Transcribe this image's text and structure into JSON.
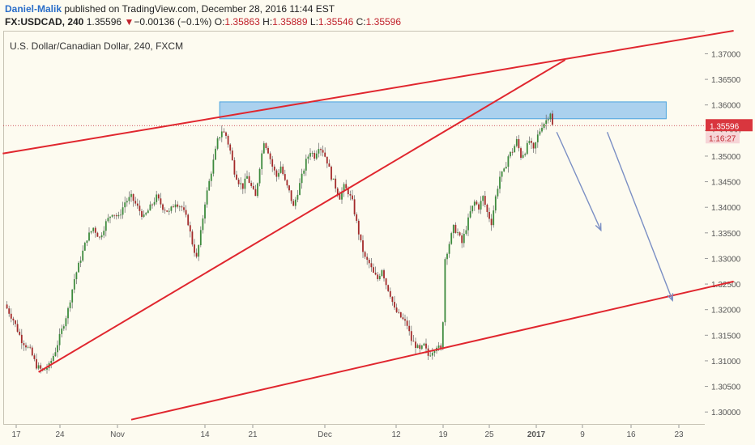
{
  "header": {
    "author": "Daniel-Malik",
    "published": "published on TradingView.com, December 28, 2016 11:44 EST",
    "symbol": "FX:USDCAD, 240",
    "last": "1.35596",
    "change_arrow": "▼",
    "change": "−0.00136 (−0.1%)",
    "open_label": "O:",
    "open": "1.35863",
    "high_label": "H:",
    "high": "1.35889",
    "low_label": "L:",
    "low": "1.35546",
    "close_label": "C:",
    "close": "1.35596"
  },
  "chart_data": {
    "type": "candlestick",
    "title": "U.S. Dollar/Canadian Dollar, 240, FXCM",
    "ylim": [
      1.2975,
      1.3745
    ],
    "y_ticks": [
      "1.30000",
      "1.30500",
      "1.31000",
      "1.31500",
      "1.32000",
      "1.32500",
      "1.33000",
      "1.33500",
      "1.34000",
      "1.34500",
      "1.35000",
      "1.35500",
      "1.36000",
      "1.36500",
      "1.37000"
    ],
    "x_ticks": [
      "17",
      "24",
      "Nov",
      "14",
      "21",
      "Dec",
      "12",
      "19",
      "25",
      "2017",
      "9",
      "16",
      "23"
    ],
    "last_price_label": "1.35596",
    "countdown_label": "1:16:27",
    "close_path": [
      [
        0,
        1.321
      ],
      [
        4,
        1.318
      ],
      [
        8,
        1.314
      ],
      [
        12,
        1.312
      ],
      [
        15,
        1.309
      ],
      [
        18,
        1.308
      ],
      [
        21,
        1.309
      ],
      [
        24,
        1.312
      ],
      [
        27,
        1.316
      ],
      [
        30,
        1.32
      ],
      [
        33,
        1.326
      ],
      [
        36,
        1.33
      ],
      [
        39,
        1.334
      ],
      [
        42,
        1.336
      ],
      [
        45,
        1.334
      ],
      [
        48,
        1.337
      ],
      [
        51,
        1.339
      ],
      [
        54,
        1.338
      ],
      [
        57,
        1.341
      ],
      [
        60,
        1.342
      ],
      [
        63,
        1.34
      ],
      [
        66,
        1.338
      ],
      [
        69,
        1.34
      ],
      [
        72,
        1.342
      ],
      [
        75,
        1.34
      ],
      [
        78,
        1.339
      ],
      [
        81,
        1.341
      ],
      [
        84,
        1.34
      ],
      [
        87,
        1.337
      ],
      [
        89,
        1.333
      ],
      [
        91,
        1.33
      ],
      [
        93,
        1.335
      ],
      [
        95,
        1.341
      ],
      [
        97,
        1.345
      ],
      [
        99,
        1.349
      ],
      [
        101,
        1.353
      ],
      [
        103,
        1.355
      ],
      [
        105,
        1.354
      ],
      [
        107,
        1.351
      ],
      [
        109,
        1.347
      ],
      [
        111,
        1.345
      ],
      [
        113,
        1.344
      ],
      [
        115,
        1.346
      ],
      [
        117,
        1.344
      ],
      [
        119,
        1.342
      ],
      [
        121,
        1.348
      ],
      [
        123,
        1.353
      ],
      [
        125,
        1.351
      ],
      [
        127,
        1.348
      ],
      [
        129,
        1.346
      ],
      [
        131,
        1.348
      ],
      [
        133,
        1.345
      ],
      [
        135,
        1.343
      ],
      [
        137,
        1.34
      ],
      [
        139,
        1.343
      ],
      [
        141,
        1.346
      ],
      [
        143,
        1.349
      ],
      [
        145,
        1.351
      ],
      [
        147,
        1.35
      ],
      [
        149,
        1.352
      ],
      [
        151,
        1.351
      ],
      [
        153,
        1.349
      ],
      [
        155,
        1.346
      ],
      [
        157,
        1.344
      ],
      [
        159,
        1.342
      ],
      [
        161,
        1.344
      ],
      [
        163,
        1.343
      ],
      [
        165,
        1.341
      ],
      [
        167,
        1.337
      ],
      [
        169,
        1.333
      ],
      [
        171,
        1.33
      ],
      [
        173,
        1.329
      ],
      [
        175,
        1.327
      ],
      [
        177,
        1.326
      ],
      [
        179,
        1.328
      ],
      [
        181,
        1.325
      ],
      [
        183,
        1.323
      ],
      [
        185,
        1.32
      ],
      [
        187,
        1.319
      ],
      [
        189,
        1.318
      ],
      [
        191,
        1.317
      ],
      [
        193,
        1.314
      ],
      [
        195,
        1.313
      ],
      [
        197,
        1.312
      ],
      [
        199,
        1.313
      ],
      [
        201,
        1.311
      ],
      [
        203,
        1.312
      ],
      [
        205,
        1.313
      ],
      [
        207,
        1.312
      ],
      [
        208,
        1.318
      ],
      [
        209,
        1.33
      ],
      [
        211,
        1.333
      ],
      [
        213,
        1.336
      ],
      [
        215,
        1.335
      ],
      [
        217,
        1.333
      ],
      [
        219,
        1.336
      ],
      [
        221,
        1.339
      ],
      [
        223,
        1.341
      ],
      [
        225,
        1.34
      ],
      [
        227,
        1.342
      ],
      [
        229,
        1.339
      ],
      [
        231,
        1.337
      ],
      [
        233,
        1.342
      ],
      [
        235,
        1.346
      ],
      [
        237,
        1.347
      ],
      [
        239,
        1.35
      ],
      [
        241,
        1.351
      ],
      [
        243,
        1.353
      ],
      [
        245,
        1.35
      ],
      [
        247,
        1.351
      ],
      [
        249,
        1.353
      ],
      [
        251,
        1.351
      ],
      [
        253,
        1.354
      ],
      [
        255,
        1.356
      ],
      [
        257,
        1.357
      ],
      [
        259,
        1.3586
      ],
      [
        260,
        1.35596
      ]
    ],
    "zone": {
      "x_from": 102,
      "x_to": 314,
      "y_low": 1.3573,
      "y_high": 1.3606
    },
    "trendlines": [
      {
        "name": "upper-channel",
        "x1": -1,
        "y1": 1.3505,
        "x2": 346,
        "y2": 1.3745
      },
      {
        "name": "rising-support",
        "x1": 16,
        "y1": 1.3078,
        "x2": 266,
        "y2": 1.3688
      },
      {
        "name": "lower-channel",
        "x1": 60,
        "y1": 1.2985,
        "x2": 346,
        "y2": 1.3255
      }
    ],
    "arrows": [
      {
        "x1": 262,
        "y1": 1.3547,
        "x2": 283,
        "y2": 1.3355
      },
      {
        "x1": 286,
        "y1": 1.3547,
        "x2": 317,
        "y2": 1.3218
      }
    ]
  }
}
